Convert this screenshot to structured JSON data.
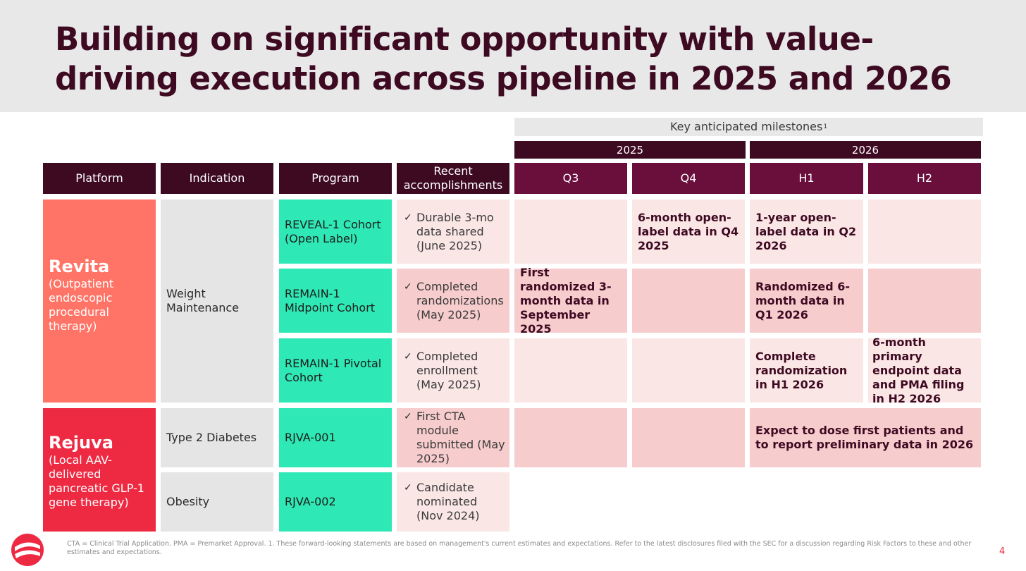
{
  "title": "Building on significant opportunity with value-driving execution across pipeline in 2025 and 2026",
  "milestones_header": {
    "label": "Key anticipated milestones",
    "sup": "1"
  },
  "years": [
    "2025",
    "2026"
  ],
  "columns": {
    "platform": "Platform",
    "indication": "Indication",
    "program": "Program",
    "recent": "Recent accomplishments",
    "q3": "Q3",
    "q4": "Q4",
    "h1": "H1",
    "h2": "H2"
  },
  "platforms": {
    "revita": {
      "name": "Revita",
      "desc": "(Outpatient endoscopic procedural therapy)"
    },
    "rejuva": {
      "name": "Rejuva",
      "desc": "(Local AAV-delivered pancreatic GLP-1 gene therapy)"
    }
  },
  "indications": {
    "weight": "Weight Maintenance",
    "t2d": "Type 2 Diabetes",
    "obesity": "Obesity"
  },
  "rows": [
    {
      "program": "REVEAL-1 Cohort (Open Label)",
      "recent": "Durable 3-mo data shared (June 2025)",
      "q3": "",
      "q4": "6-month open-label data in Q4 2025",
      "h1": "1-year open-label data in Q2 2026",
      "h2": ""
    },
    {
      "program": "REMAIN-1 Midpoint Cohort",
      "recent": "Completed randomizations (May 2025)",
      "q3": "First randomized 3-month data in September 2025",
      "q4": "",
      "h1": "Randomized 6-month data in Q1 2026",
      "h2": ""
    },
    {
      "program": "REMAIN-1 Pivotal Cohort",
      "recent": "Completed enrollment (May 2025)",
      "q3": "",
      "q4": "",
      "h1": "Complete randomization in H1 2026",
      "h2": "6-month primary endpoint data and PMA filing in H2 2026"
    },
    {
      "program": "RJVA-001",
      "recent": "First CTA module submitted (May 2025)",
      "q3": "",
      "q4": "",
      "h1h2": "Expect to dose first patients and to report preliminary data in 2026"
    },
    {
      "program": "RJVA-002",
      "recent": "Candidate nominated (Nov 2024)"
    }
  ],
  "check_glyph": "✓",
  "footnote": "CTA = Clinical Trial Application. PMA = Premarket Approval. 1. These forward-looking statements are based on management's current estimates and expectations. Refer to the latest disclosures filed with the SEC for a discussion regarding Risk Factors to these and other estimates and expectations.",
  "page_number": "4",
  "colors": {
    "brand_dark": "#3d0a22",
    "quarter_header": "#6a0e3c",
    "revita": "#ff7466",
    "rejuva": "#ee2a43",
    "program": "#2ee8b5",
    "light_pink": "#fbe6e6",
    "mid_pink": "#f7cccd"
  }
}
